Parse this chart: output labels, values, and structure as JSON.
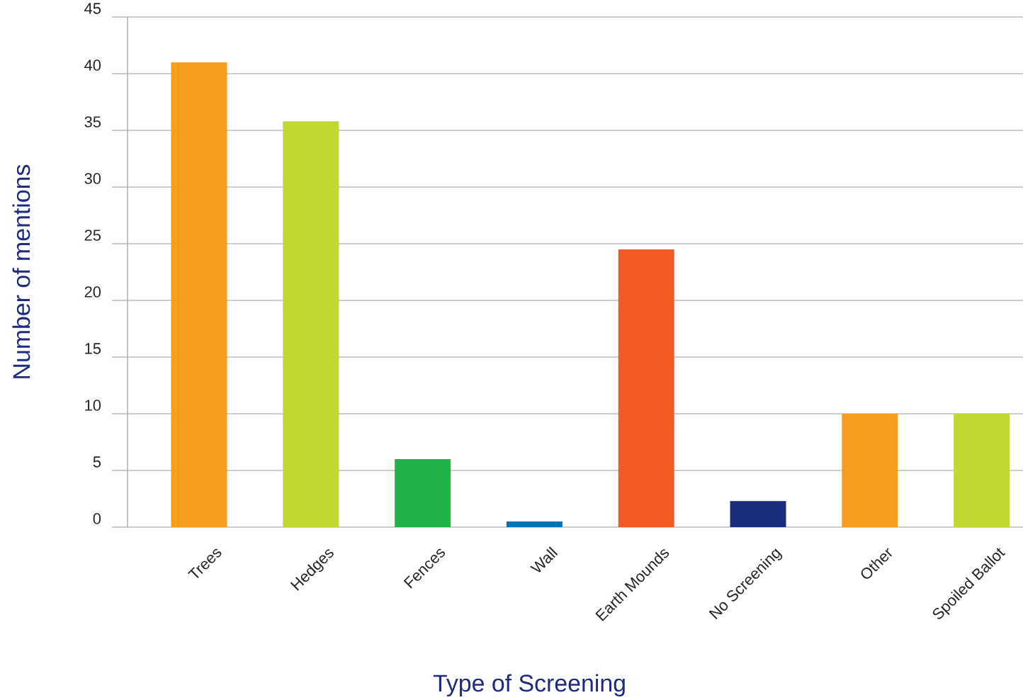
{
  "chart_data": {
    "type": "bar",
    "xlabel": "Type of Screening",
    "ylabel": "Number of mentions",
    "categories": [
      "Trees",
      "Hedges",
      "Fences",
      "Wall",
      "Earth Mounds",
      "No Screening",
      "Other",
      "Spoiled Ballot"
    ],
    "values": [
      41,
      35.8,
      6,
      0.5,
      24.5,
      2.3,
      10,
      10
    ],
    "colors": [
      "#f79d1e",
      "#bfd730",
      "#22b24c",
      "#0071bb",
      "#f15a22",
      "#192d7c",
      "#f79d1e",
      "#bfd730"
    ],
    "ylim": [
      0,
      45
    ],
    "yticks": [
      0,
      5,
      10,
      15,
      20,
      25,
      30,
      35,
      40,
      45
    ],
    "grid": "y"
  }
}
